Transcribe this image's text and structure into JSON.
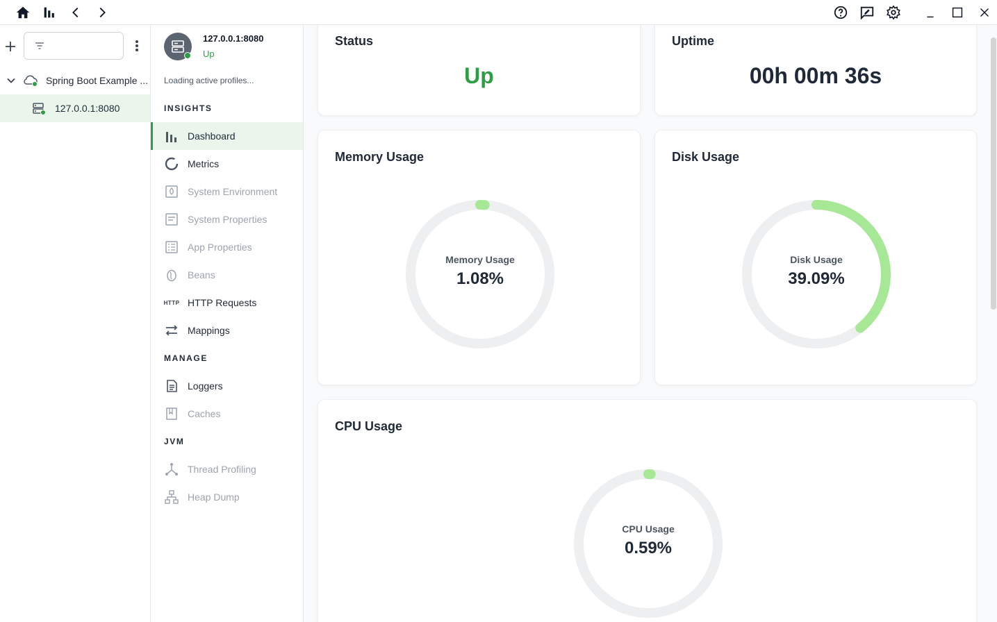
{
  "tree": {
    "application": "Spring Boot Example ...",
    "instance": "127.0.0.1:8080"
  },
  "instance": {
    "name": "127.0.0.1:8080",
    "status": "Up",
    "profiles": "Loading active profiles..."
  },
  "nav": {
    "insights_title": "INSIGHTS",
    "manage_title": "MANAGE",
    "jvm_title": "JVM",
    "items": [
      {
        "label": "Dashboard"
      },
      {
        "label": "Metrics"
      },
      {
        "label": "System Environment"
      },
      {
        "label": "System Properties"
      },
      {
        "label": "App Properties"
      },
      {
        "label": "Beans"
      },
      {
        "label": "HTTP Requests"
      },
      {
        "label": "Mappings"
      },
      {
        "label": "Loggers"
      },
      {
        "label": "Caches"
      },
      {
        "label": "Thread Profiling"
      },
      {
        "label": "Heap Dump"
      }
    ],
    "http_badge": "HTTP"
  },
  "dashboard": {
    "status": {
      "title": "Status",
      "value": "Up"
    },
    "uptime": {
      "title": "Uptime",
      "value": "00h 00m 36s"
    },
    "memory": {
      "title": "Memory Usage",
      "label": "Memory Usage",
      "value": "1.08%",
      "fraction": 0.0108
    },
    "disk": {
      "title": "Disk Usage",
      "label": "Disk Usage",
      "value": "39.09%",
      "fraction": 0.3909
    },
    "cpu": {
      "title": "CPU Usage",
      "label": "CPU Usage",
      "value": "0.59%",
      "fraction": 0.0059
    }
  },
  "colors": {
    "accent": "#2e9e46",
    "gauge_fill": "#a6e896",
    "gauge_track": "#eeeff1"
  }
}
